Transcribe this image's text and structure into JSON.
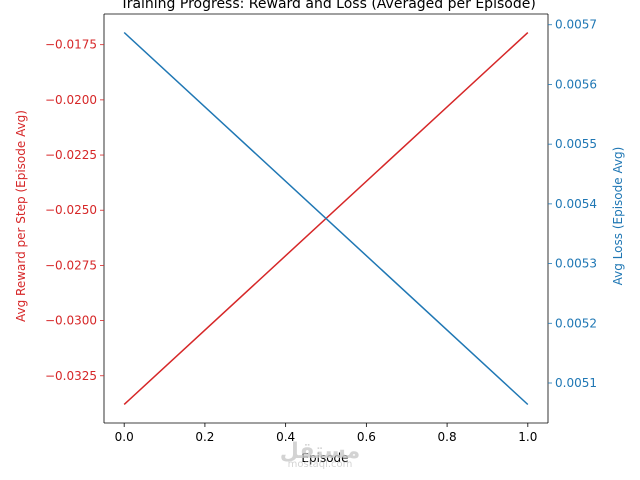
{
  "chart_data": {
    "type": "line",
    "title": "Training Progress: Reward and Loss (Averaged per Episode)",
    "xlabel": "Episode",
    "x": [
      0.0,
      1.0
    ],
    "xlim": [
      -0.05,
      1.05
    ],
    "xticks": [
      0.0,
      0.2,
      0.4,
      0.6,
      0.8,
      1.0
    ],
    "xtick_labels": [
      "0.0",
      "0.2",
      "0.4",
      "0.6",
      "0.8",
      "1.0"
    ],
    "left_axis": {
      "label": "Avg Reward per Step (Episode Avg)",
      "color": "#d62728",
      "ylim": [
        -0.03464,
        -0.01611
      ],
      "ticks": [
        -0.0325,
        -0.03,
        -0.0275,
        -0.025,
        -0.0225,
        -0.02,
        -0.0175
      ],
      "tick_labels": [
        "−0.0325",
        "−0.0300",
        "−0.0275",
        "−0.0250",
        "−0.0225",
        "−0.0200",
        "−0.0175"
      ]
    },
    "right_axis": {
      "label": "Avg Loss (Episode Avg)",
      "color": "#1f77b4",
      "ylim": [
        0.005033,
        0.005718
      ],
      "ticks": [
        0.0051,
        0.0052,
        0.0053,
        0.0054,
        0.0055,
        0.0056,
        0.0057
      ],
      "tick_labels": [
        "0.0051",
        "0.0052",
        "0.0053",
        "0.0054",
        "0.0055",
        "0.0056",
        "0.0057"
      ]
    },
    "series": [
      {
        "axis": "left",
        "color": "#d62728",
        "values": [
          -0.0338,
          -0.01695
        ]
      },
      {
        "axis": "right",
        "color": "#1f77b4",
        "values": [
          0.005687,
          0.005064
        ]
      }
    ],
    "grid": false
  },
  "watermark": {
    "logo": "مستقل",
    "url": "mostaql.com"
  }
}
